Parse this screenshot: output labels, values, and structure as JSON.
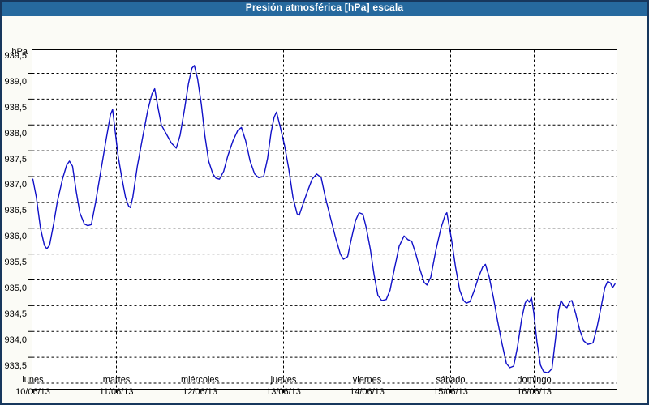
{
  "title": "Presión atmosférica [hPa] escala",
  "colors": {
    "title_bar": "#26699e",
    "frame": "#17375d",
    "line": "#1010c8",
    "grid": "#000000",
    "background": "#fbfbf6"
  },
  "y_axis": {
    "unit": "hPa",
    "tick_labels": [
      "939,5",
      "939,0",
      "938,5",
      "938,0",
      "937,5",
      "937,0",
      "936,5",
      "936,0",
      "935,5",
      "935,0",
      "934,5",
      "934,0",
      "933,5"
    ],
    "tick_values": [
      939.5,
      939.0,
      938.5,
      938.0,
      937.5,
      937.0,
      936.5,
      936.0,
      935.5,
      935.0,
      934.5,
      934.0,
      933.5
    ]
  },
  "x_axis": {
    "days": [
      {
        "name": "lunes",
        "date": "10/06/13"
      },
      {
        "name": "martes",
        "date": "11/06/13"
      },
      {
        "name": "miércoles",
        "date": "12/06/13"
      },
      {
        "name": "jueves",
        "date": "13/06/13"
      },
      {
        "name": "viernes",
        "date": "14/06/13"
      },
      {
        "name": "sábado",
        "date": "15/06/13"
      },
      {
        "name": "domingo",
        "date": "16/06/13"
      }
    ]
  },
  "chart_data": {
    "type": "line",
    "title": "Presión atmosférica [hPa] escala",
    "ylabel": "hPa",
    "xlabel": "",
    "grid": true,
    "legend": false,
    "ylim": [
      933.4,
      939.95
    ],
    "x_unit": "hours from 10/06/13 00:00",
    "xlim_hours": [
      0,
      168
    ],
    "series_name": "Presión atmosférica",
    "points": [
      [
        0,
        937.45
      ],
      [
        1,
        937.1
      ],
      [
        2.2,
        936.5
      ],
      [
        3.3,
        936.17
      ],
      [
        4,
        936.1
      ],
      [
        4.8,
        936.17
      ],
      [
        6,
        936.6
      ],
      [
        7,
        937.0
      ],
      [
        8.5,
        937.45
      ],
      [
        9.7,
        937.72
      ],
      [
        10.5,
        937.8
      ],
      [
        11.4,
        937.7
      ],
      [
        12.5,
        937.2
      ],
      [
        13.5,
        936.8
      ],
      [
        14.8,
        936.58
      ],
      [
        15.8,
        936.55
      ],
      [
        16.8,
        936.57
      ],
      [
        18,
        937.0
      ],
      [
        19.5,
        937.6
      ],
      [
        21,
        938.2
      ],
      [
        22.3,
        938.7
      ],
      [
        22.9,
        938.8
      ],
      [
        23.6,
        938.4
      ],
      [
        24.5,
        937.9
      ],
      [
        25.5,
        937.5
      ],
      [
        26.6,
        937.1
      ],
      [
        27.5,
        936.93
      ],
      [
        28,
        936.9
      ],
      [
        28.7,
        937.1
      ],
      [
        30,
        937.7
      ],
      [
        31.5,
        938.25
      ],
      [
        33,
        938.78
      ],
      [
        34.2,
        939.1
      ],
      [
        35,
        939.2
      ],
      [
        35.9,
        938.85
      ],
      [
        36.9,
        938.5
      ],
      [
        38.3,
        938.33
      ],
      [
        39.8,
        938.15
      ],
      [
        41.2,
        938.05
      ],
      [
        42.3,
        938.3
      ],
      [
        43.5,
        938.78
      ],
      [
        44.7,
        939.3
      ],
      [
        45.7,
        939.6
      ],
      [
        46.4,
        939.65
      ],
      [
        47.3,
        939.4
      ],
      [
        48.4,
        938.9
      ],
      [
        49.4,
        938.3
      ],
      [
        50.5,
        937.8
      ],
      [
        51.7,
        937.55
      ],
      [
        52.6,
        937.47
      ],
      [
        53.6,
        937.45
      ],
      [
        54.8,
        937.6
      ],
      [
        56,
        937.9
      ],
      [
        57.5,
        938.2
      ],
      [
        58.9,
        938.4
      ],
      [
        59.9,
        938.45
      ],
      [
        61.1,
        938.2
      ],
      [
        62.4,
        937.8
      ],
      [
        63.7,
        937.55
      ],
      [
        64.8,
        937.48
      ],
      [
        66.3,
        937.5
      ],
      [
        67.4,
        937.85
      ],
      [
        68.4,
        938.35
      ],
      [
        69.3,
        938.65
      ],
      [
        70,
        938.75
      ],
      [
        71.1,
        938.45
      ],
      [
        72.3,
        938.1
      ],
      [
        73.5,
        937.65
      ],
      [
        74.7,
        937.1
      ],
      [
        75.9,
        936.78
      ],
      [
        76.5,
        936.75
      ],
      [
        77.5,
        936.95
      ],
      [
        78.8,
        937.2
      ],
      [
        80.2,
        937.45
      ],
      [
        81.5,
        937.55
      ],
      [
        82.8,
        937.48
      ],
      [
        84,
        937.1
      ],
      [
        85.5,
        936.7
      ],
      [
        87,
        936.3
      ],
      [
        88.3,
        936.0
      ],
      [
        89.2,
        935.9
      ],
      [
        90.4,
        935.95
      ],
      [
        91.5,
        936.3
      ],
      [
        92.7,
        936.65
      ],
      [
        93.7,
        936.8
      ],
      [
        94.8,
        936.77
      ],
      [
        95.8,
        936.5
      ],
      [
        96.9,
        936.1
      ],
      [
        98,
        935.6
      ],
      [
        99.1,
        935.2
      ],
      [
        100.2,
        935.1
      ],
      [
        101.5,
        935.12
      ],
      [
        102.6,
        935.3
      ],
      [
        103.8,
        935.7
      ],
      [
        105.2,
        936.15
      ],
      [
        106.6,
        936.35
      ],
      [
        107.7,
        936.28
      ],
      [
        108.8,
        936.25
      ],
      [
        110,
        936.0
      ],
      [
        111.2,
        935.7
      ],
      [
        112.4,
        935.45
      ],
      [
        113.2,
        935.4
      ],
      [
        114.3,
        935.55
      ],
      [
        115.7,
        936.05
      ],
      [
        117.2,
        936.5
      ],
      [
        118.4,
        936.75
      ],
      [
        118.9,
        936.8
      ],
      [
        120.2,
        936.3
      ],
      [
        121.4,
        935.75
      ],
      [
        122.6,
        935.3
      ],
      [
        123.7,
        935.1
      ],
      [
        124.5,
        935.05
      ],
      [
        125.6,
        935.08
      ],
      [
        126.8,
        935.3
      ],
      [
        128,
        935.55
      ],
      [
        129.2,
        935.75
      ],
      [
        130,
        935.8
      ],
      [
        131.1,
        935.55
      ],
      [
        132.3,
        935.15
      ],
      [
        133.5,
        934.7
      ],
      [
        134.8,
        934.25
      ],
      [
        136,
        933.88
      ],
      [
        137,
        933.8
      ],
      [
        138.1,
        933.83
      ],
      [
        139.2,
        934.2
      ],
      [
        140.4,
        934.75
      ],
      [
        141.4,
        935.05
      ],
      [
        142,
        935.12
      ],
      [
        142.6,
        935.07
      ],
      [
        143.2,
        935.16
      ],
      [
        143.9,
        934.85
      ],
      [
        144.8,
        934.3
      ],
      [
        145.8,
        933.85
      ],
      [
        146.7,
        933.72
      ],
      [
        148,
        933.7
      ],
      [
        149.1,
        933.78
      ],
      [
        150.1,
        934.35
      ],
      [
        151,
        934.9
      ],
      [
        151.7,
        935.1
      ],
      [
        152.6,
        935.0
      ],
      [
        153.4,
        934.96
      ],
      [
        154.2,
        935.08
      ],
      [
        154.8,
        935.1
      ],
      [
        155.9,
        934.85
      ],
      [
        157,
        934.55
      ],
      [
        158.2,
        934.32
      ],
      [
        159.4,
        934.25
      ],
      [
        160.9,
        934.28
      ],
      [
        162.1,
        934.6
      ],
      [
        163.3,
        935.0
      ],
      [
        164.3,
        935.35
      ],
      [
        165.1,
        935.47
      ],
      [
        165.9,
        935.44
      ],
      [
        166.5,
        935.35
      ],
      [
        167.2,
        935.42
      ]
    ]
  }
}
